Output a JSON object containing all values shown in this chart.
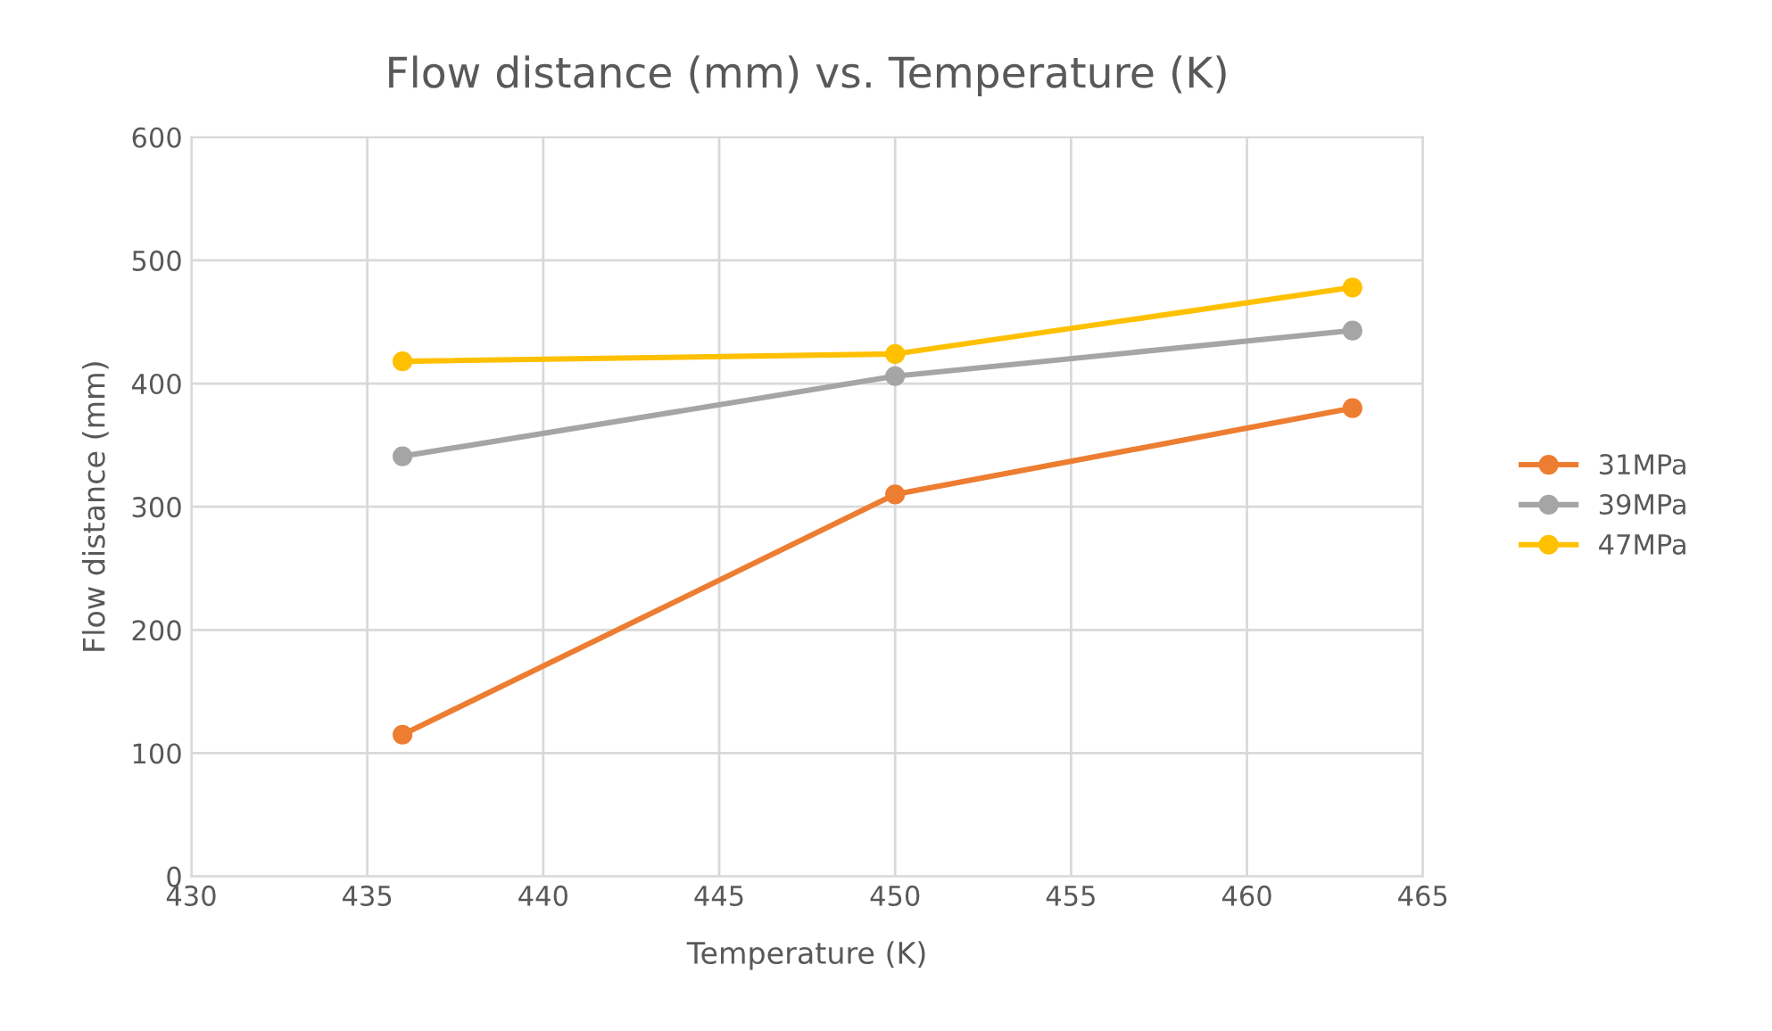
{
  "chart_data": {
    "type": "line",
    "title": "Flow distance (mm) vs. Temperature (K)",
    "xlabel": "Temperature (K)",
    "ylabel": "Flow distance (mm)",
    "x": [
      436,
      450,
      463
    ],
    "series": [
      {
        "name": "31MPa",
        "color": "#ed7d31",
        "values": [
          115,
          310,
          380
        ]
      },
      {
        "name": "39MPa",
        "color": "#a5a5a5",
        "values": [
          341,
          406,
          443
        ]
      },
      {
        "name": "47MPa",
        "color": "#ffc000",
        "values": [
          418,
          424,
          478
        ]
      }
    ],
    "xlim": [
      430,
      465
    ],
    "xticks": [
      430,
      435,
      440,
      445,
      450,
      455,
      460,
      465
    ],
    "ylim": [
      0,
      600
    ],
    "yticks": [
      0,
      100,
      200,
      300,
      400,
      500,
      600
    ],
    "grid": true,
    "legend": "right",
    "marker": "circle",
    "line_style": "solid"
  }
}
